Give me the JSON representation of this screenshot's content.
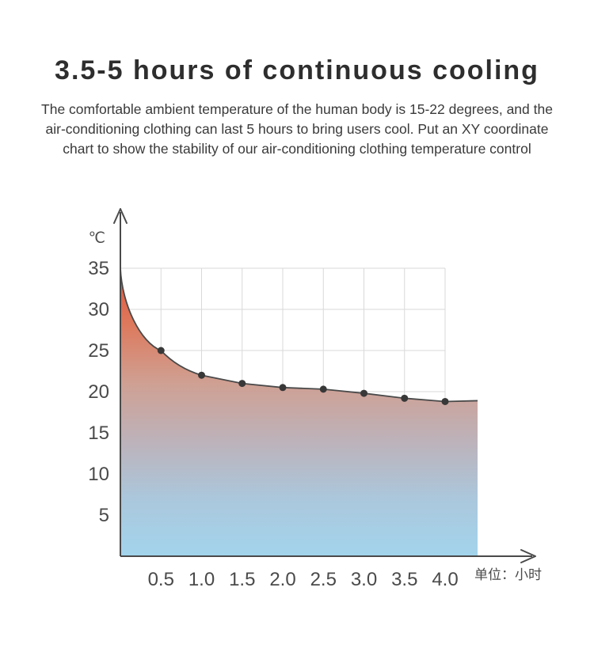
{
  "header": {
    "title": "3.5-5 hours of continuous cooling",
    "description_lines": [
      "The comfortable ambient temperature of the human body is 15-22 degrees, and the",
      "air-conditioning clothing can last 5 hours to bring users cool. Put an XY coordinate",
      "chart to show the stability of our air-conditioning clothing temperature control"
    ]
  },
  "chart_data": {
    "type": "area",
    "x": [
      0,
      0.5,
      1.0,
      1.5,
      2.0,
      2.5,
      3.0,
      3.5,
      4.0,
      4.4
    ],
    "y": [
      35,
      25,
      22,
      21,
      20.5,
      20.3,
      19.8,
      19.2,
      18.8,
      18.9
    ],
    "point_x": [
      0.5,
      1.0,
      1.5,
      2.0,
      2.5,
      3.0,
      3.5,
      4.0
    ],
    "point_y": [
      25,
      22,
      21,
      20.5,
      20.3,
      19.8,
      19.2,
      18.8
    ],
    "x_ticks": [
      "0.5",
      "1.0",
      "1.5",
      "2.0",
      "2.5",
      "3.0",
      "3.5",
      "4.0"
    ],
    "y_ticks": [
      5,
      10,
      15,
      20,
      25,
      30,
      35
    ],
    "xlim": [
      0,
      5
    ],
    "ylim": [
      0,
      38
    ],
    "y_axis_label": "℃",
    "x_axis_unit_label": "单位：小时",
    "grid": true,
    "legend_position": "none",
    "colors": {
      "area_gradient": [
        "#e2533a",
        "#dd7a5e",
        "#cfa093",
        "#bdb2ba",
        "#abc7dc",
        "#a2d4ec"
      ],
      "line": "#4a4a4a",
      "point": "#383838",
      "axis": "#4a4a4a",
      "grid": "#d9d9d9",
      "tick_text": "#4a4a4a"
    }
  }
}
